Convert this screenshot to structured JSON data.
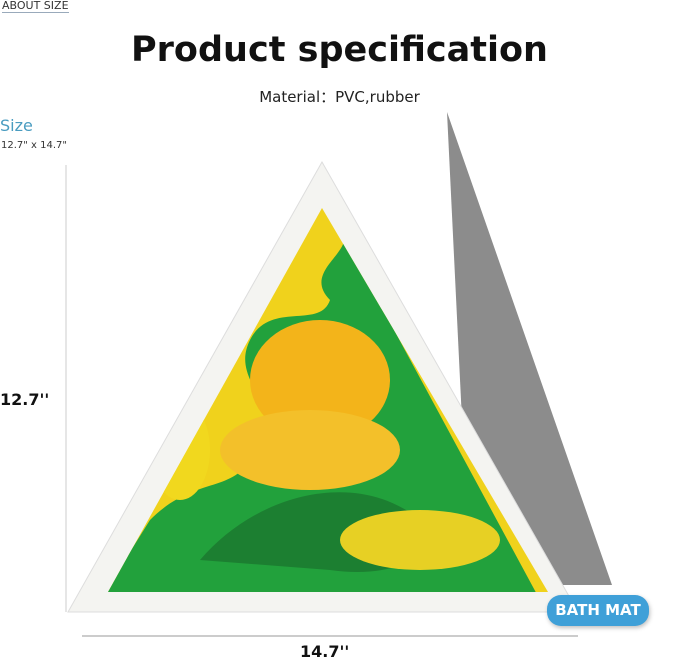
{
  "header": {
    "link": "ABOUT SIZE",
    "title": "Product specification",
    "material": "Material：PVC,rubber"
  },
  "size": {
    "label": "Size",
    "value": "12.7\" x 14.7\""
  },
  "dimensions": {
    "height": "12.7''",
    "width": "14.7''"
  },
  "badge": "BATH MAT",
  "colors": {
    "accent": "#3fa0d8",
    "yellow": "#f2d21a",
    "green": "#1f9a3a",
    "gray_mat": "#8a8a8a"
  }
}
